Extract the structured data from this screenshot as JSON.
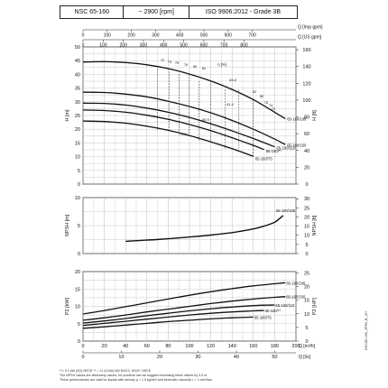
{
  "header": {
    "model": "NSC 65-160",
    "speed": "~ 2900 [rpm]",
    "standard": "ISO 9906:2012 - Grade 3B"
  },
  "footnotes": {
    "line1": "The NPSH values are laboratory values; for practical use we suggest increasing these values by 0.5 m.",
    "line2": "These performances are valid for liquids with density ρ = 1.0 kg/dm³ and kinematic viscosity ν = 1 mm²/sec.",
    "notes": "**= 9.2 kW (/02) NSCE   ** = 11 (/110A) kW NSCS, NSCF, NSCE"
  },
  "side_code": "NSC65-160_2P50_B_CH",
  "chart_data": [
    {
      "type": "line",
      "name": "head-curves",
      "xlabel": "Q [m³/h]",
      "top_axis_1": {
        "label": "Q [Imp gpm]",
        "ticks": [
          0,
          100,
          200,
          300,
          400,
          500,
          600,
          700
        ]
      },
      "top_axis_2": {
        "label": "Q [US gpm]",
        "ticks": [
          0,
          100,
          200,
          300,
          400,
          500,
          600,
          700,
          800
        ]
      },
      "ylabel_left": "H [m]",
      "ylim_left": [
        0,
        50
      ],
      "yticks_left": [
        0,
        5,
        10,
        15,
        20,
        25,
        30,
        35,
        40,
        45,
        50
      ],
      "ylabel_right": "H [ft]",
      "yticks_right": [
        0,
        20,
        40,
        60,
        80,
        100,
        120,
        140,
        160
      ],
      "xlim": [
        0,
        200
      ],
      "series": [
        {
          "name": "65-160/185",
          "x": [
            0,
            20,
            40,
            60,
            80,
            100,
            120,
            140,
            160,
            180,
            190
          ],
          "y": [
            44.5,
            44.6,
            44.3,
            43.5,
            42.1,
            40.1,
            37.6,
            34.5,
            30.8,
            26.2,
            23.8
          ]
        },
        {
          "name": "65-160/150",
          "x": [
            0,
            20,
            40,
            60,
            80,
            100,
            120,
            140,
            160,
            180,
            190
          ],
          "y": [
            33.5,
            33.4,
            32.8,
            31.8,
            30.2,
            28.3,
            26.0,
            23.2,
            20.0,
            16.4,
            14.4
          ]
        },
        {
          "name": "65-160/110",
          "x": [
            0,
            20,
            40,
            60,
            80,
            100,
            120,
            140,
            160,
            180
          ],
          "y": [
            29.5,
            29.4,
            28.8,
            27.7,
            26.2,
            24.3,
            22.0,
            19.4,
            16.6,
            13.6
          ]
        },
        {
          "name": "65-160/**",
          "x": [
            0,
            20,
            40,
            60,
            80,
            100,
            120,
            140,
            160,
            170
          ],
          "y": [
            27.0,
            26.8,
            26.2,
            25.1,
            23.6,
            21.7,
            19.5,
            16.9,
            14.1,
            12.6
          ]
        },
        {
          "name": "65-160/75",
          "x": [
            0,
            20,
            40,
            60,
            80,
            100,
            120,
            140,
            160
          ],
          "y": [
            23.0,
            22.8,
            22.2,
            21.1,
            19.6,
            17.7,
            15.4,
            12.9,
            10.1
          ]
        }
      ],
      "iso_efficiency_labels": [
        "72",
        "74",
        "75",
        "76",
        "80",
        "82",
        "83.8",
        "82",
        "80",
        "76",
        "74",
        "72",
        "81.4",
        "80.9",
        "79.1"
      ],
      "efficiency_label": "η [%]"
    },
    {
      "type": "line",
      "name": "npsh-curve",
      "ylabel_left": "NPSH [m]",
      "ylim_left": [
        0,
        10
      ],
      "yticks_left": [
        0,
        5,
        10
      ],
      "ylabel_right": "NPSH [ft]",
      "yticks_right": [
        0,
        5,
        10,
        15,
        20,
        25,
        30
      ],
      "xlim": [
        0,
        200
      ],
      "series": [
        {
          "name": "65-160/185",
          "x": [
            40,
            60,
            80,
            100,
            120,
            140,
            160,
            170,
            180,
            188
          ],
          "y": [
            2.2,
            2.4,
            2.65,
            2.95,
            3.3,
            3.75,
            4.4,
            4.9,
            5.6,
            6.8
          ]
        }
      ]
    },
    {
      "type": "line",
      "name": "power-curves",
      "xlabel": "Q [m³/h]",
      "xticks": [
        0,
        20,
        40,
        60,
        80,
        100,
        120,
        140,
        160,
        180,
        200
      ],
      "xlabel_secondary": "Q [l/s]",
      "xticks_secondary": [
        0,
        10,
        20,
        30,
        40,
        50
      ],
      "ylabel_left": "P2 [kW]",
      "ylim_left": [
        0,
        20
      ],
      "yticks_left": [
        0,
        5,
        10,
        15,
        20
      ],
      "ylabel_right": "P2 [HP]",
      "yticks_right": [
        0,
        5,
        10,
        15,
        20,
        25
      ],
      "series": [
        {
          "name": "65-160/185",
          "x": [
            0,
            20,
            40,
            60,
            80,
            100,
            120,
            140,
            160,
            180,
            190
          ],
          "y": [
            7.8,
            8.8,
            9.9,
            11.0,
            12.1,
            13.2,
            14.2,
            15.1,
            15.9,
            16.5,
            16.8
          ]
        },
        {
          "name": "65-160/150",
          "x": [
            0,
            20,
            40,
            60,
            80,
            100,
            120,
            140,
            160,
            180,
            190
          ],
          "y": [
            6.0,
            6.7,
            7.5,
            8.4,
            9.2,
            10.0,
            10.8,
            11.5,
            12.1,
            12.6,
            12.8
          ]
        },
        {
          "name": "65-160/110",
          "x": [
            0,
            20,
            40,
            60,
            80,
            100,
            120,
            140,
            160,
            180
          ],
          "y": [
            5.2,
            5.8,
            6.5,
            7.3,
            8.0,
            8.7,
            9.3,
            9.8,
            10.2,
            10.4
          ]
        },
        {
          "name": "65-160/**",
          "x": [
            0,
            20,
            40,
            60,
            80,
            100,
            120,
            140,
            160,
            170
          ],
          "y": [
            4.5,
            5.1,
            5.7,
            6.3,
            6.9,
            7.5,
            8.0,
            8.4,
            8.7,
            8.8
          ]
        },
        {
          "name": "65-160/75",
          "x": [
            0,
            20,
            40,
            60,
            80,
            100,
            120,
            140,
            160
          ],
          "y": [
            3.7,
            4.1,
            4.6,
            5.1,
            5.6,
            6.0,
            6.4,
            6.7,
            6.9
          ]
        }
      ]
    }
  ]
}
